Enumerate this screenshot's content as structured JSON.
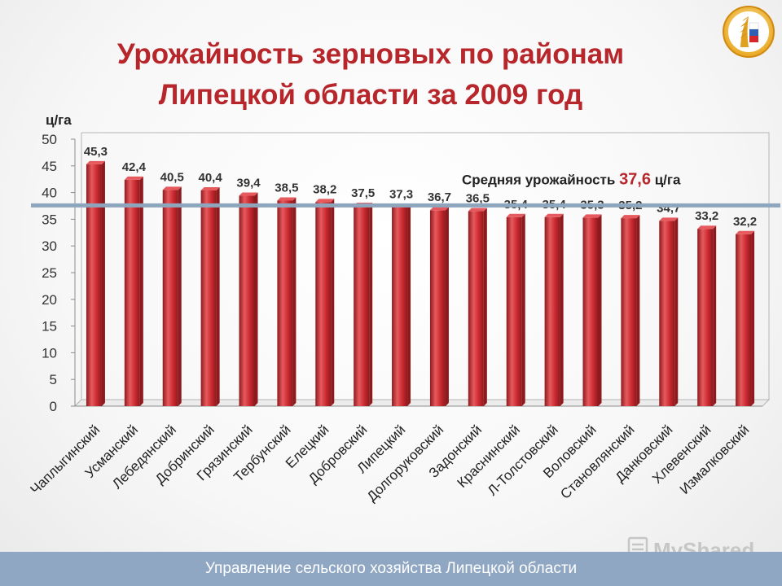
{
  "title_line1": "Урожайность зерновых по районам",
  "title_line2": "Липецкой области за 2009 год",
  "footer": "Управление сельского хозяйства Липецкой области",
  "watermark": "MyShared",
  "chart_data": {
    "type": "bar",
    "ylabel": "ц/га",
    "ylim": [
      0,
      50
    ],
    "yticks": [
      0,
      5,
      10,
      15,
      20,
      25,
      30,
      35,
      40,
      45,
      50
    ],
    "categories": [
      "Чаплыгинский",
      "Усманский",
      "Лебедянский",
      "Добринский",
      "Грязинский",
      "Тербунский",
      "Елецкий",
      "Добровский",
      "Липецкий",
      "Долгоруковский",
      "Задонский",
      "Краснинский",
      "Л-Толстовский",
      "Воловский",
      "Становлянский",
      "Данковский",
      "Хлевенский",
      "Измалковский"
    ],
    "values": [
      45.3,
      42.4,
      40.5,
      40.4,
      39.4,
      38.5,
      38.2,
      37.5,
      37.3,
      36.7,
      36.5,
      35.4,
      35.4,
      35.3,
      35.2,
      34.7,
      33.2,
      32.2
    ],
    "value_labels": [
      "45,3",
      "42,4",
      "40,5",
      "40,4",
      "39,4",
      "38,5",
      "38,2",
      "37,5",
      "37,3",
      "36,7",
      "36,5",
      "35,4",
      "35,4",
      "35,3",
      "35,2",
      "34,7",
      "33,2",
      "32,2"
    ],
    "average": {
      "value": 37.6,
      "label_prefix": "Средняя урожайность",
      "label_value": "37,6",
      "label_unit": "ц/га"
    },
    "colors": {
      "bar": "#c8282e",
      "bar_highlight": "#e65a5e",
      "bar_shadow": "#8e1a1e",
      "average_line": "#8ea6bd",
      "average_value": "#b7262b",
      "grid": "#b5b5b5"
    },
    "grid": false,
    "legend": "none"
  }
}
